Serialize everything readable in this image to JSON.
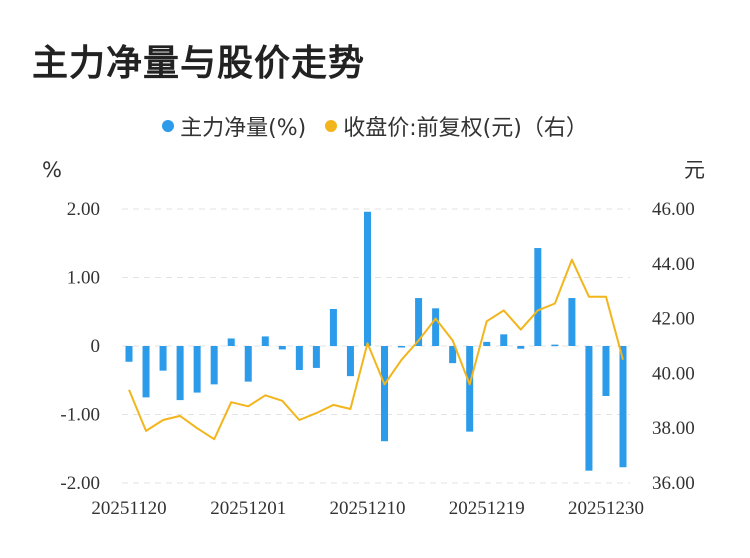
{
  "title": "主力净量与股价走势",
  "legend": [
    {
      "label": "主力净量(%)",
      "color": "#2b9bea"
    },
    {
      "label": "收盘价:前复权(元)（右）",
      "color": "#f2b51c"
    }
  ],
  "chart_data": {
    "type": "bar+line",
    "left_unit": "%",
    "right_unit": "元",
    "left_axis": {
      "min": -2,
      "max": 2,
      "ticks": [
        "2.00",
        "1.00",
        "0",
        "-1.00",
        "-2.00"
      ]
    },
    "right_axis": {
      "min": 36,
      "max": 46,
      "ticks": [
        "46.00",
        "44.00",
        "42.00",
        "40.00",
        "38.00",
        "36.00"
      ]
    },
    "x_tick_labels": [
      {
        "index": 0,
        "label": "20251120"
      },
      {
        "index": 7,
        "label": "20251201"
      },
      {
        "index": 14,
        "label": "20251210"
      },
      {
        "index": 21,
        "label": "20251219"
      },
      {
        "index": 28,
        "label": "20251230"
      }
    ],
    "series": [
      {
        "name": "主力净量(%)",
        "type": "bar",
        "color": "#2b9bea",
        "values": [
          -0.23,
          -0.75,
          -0.36,
          -0.79,
          -0.68,
          -0.56,
          0.11,
          -0.52,
          0.14,
          -0.05,
          -0.35,
          -0.32,
          0.54,
          -0.44,
          1.96,
          -1.39,
          -0.02,
          0.7,
          0.55,
          -0.25,
          -1.25,
          0.06,
          0.17,
          -0.04,
          1.43,
          0.02,
          0.7,
          -1.82,
          -0.73,
          -1.77
        ]
      },
      {
        "name": "收盘价:前复权(元)（右）",
        "type": "line",
        "color": "#f2b51c",
        "values": [
          39.4,
          37.9,
          38.3,
          38.45,
          38.0,
          37.6,
          38.95,
          38.8,
          39.2,
          39.0,
          38.3,
          38.55,
          38.85,
          38.7,
          41.1,
          39.6,
          40.5,
          41.2,
          42.0,
          41.2,
          39.6,
          41.9,
          42.3,
          41.6,
          42.3,
          42.55,
          44.15,
          42.8,
          42.8,
          40.5
        ]
      }
    ],
    "grid": "horizontal dashed"
  }
}
